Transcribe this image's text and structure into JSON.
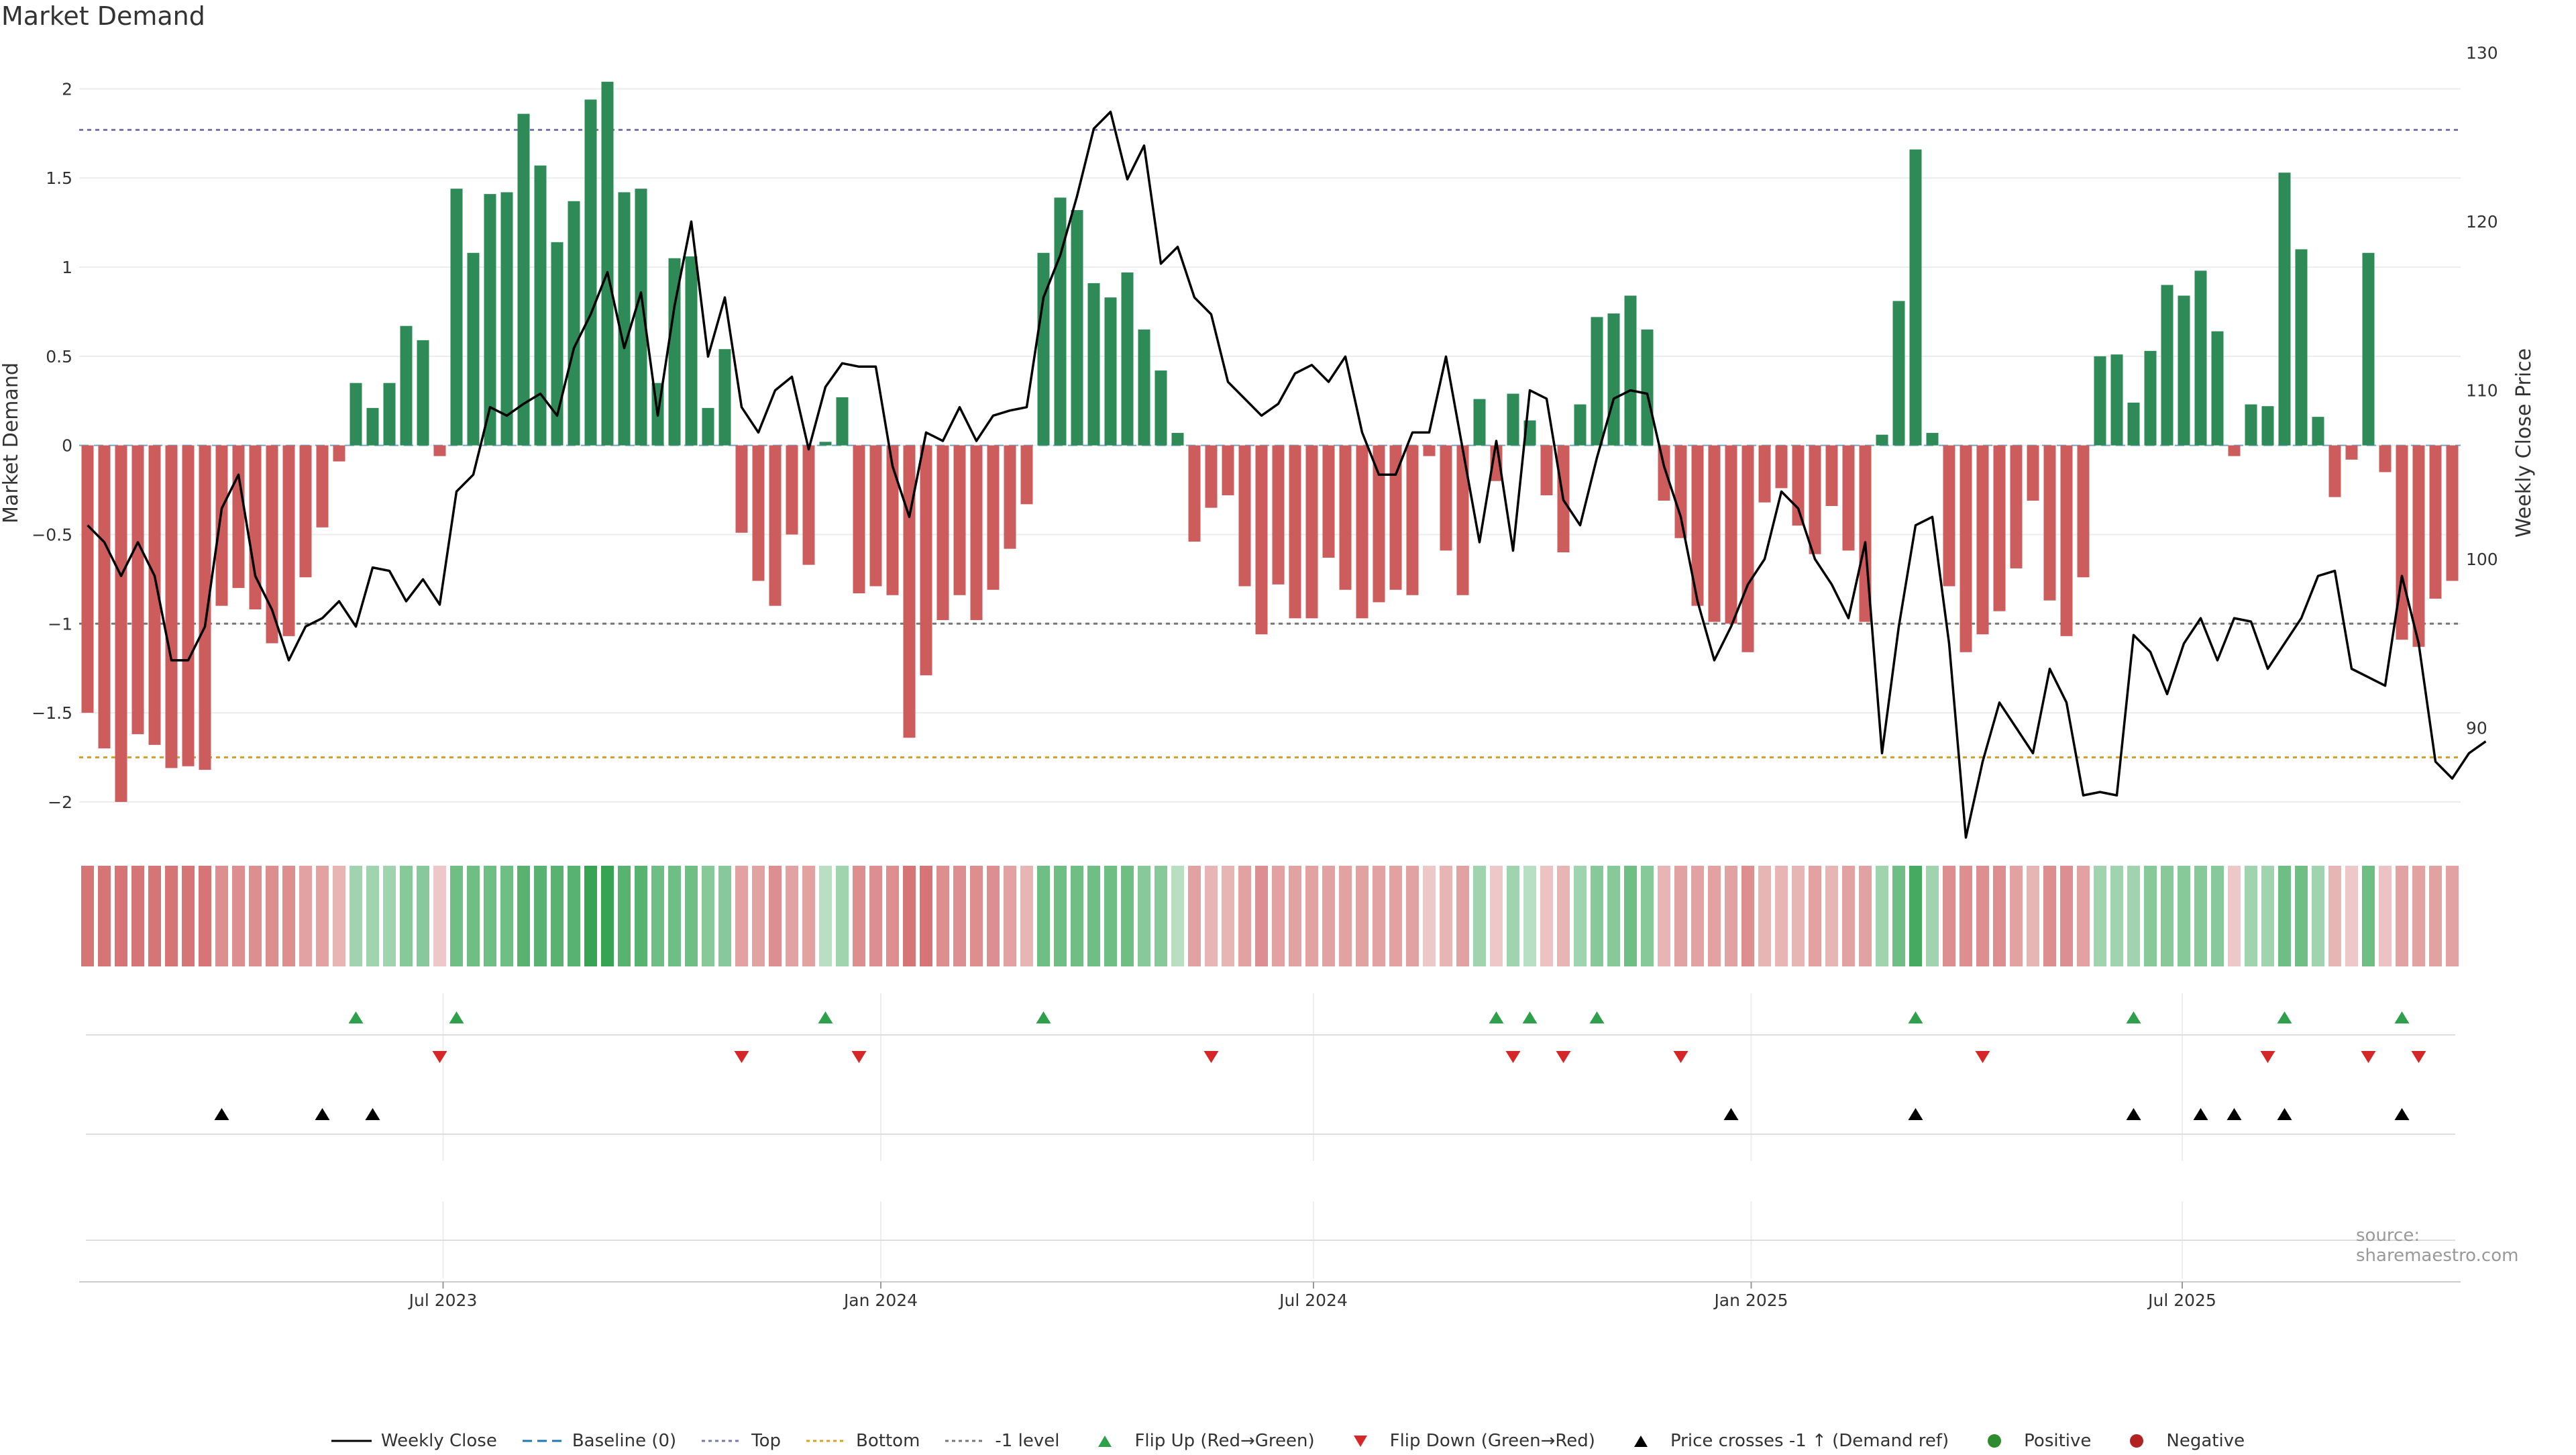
{
  "page": {
    "title": "Market Demand",
    "source": "source: sharemaestro.com"
  },
  "colors": {
    "positive_bar": "#2e8b57",
    "negative_bar": "#cd5c5c",
    "price_line": "#000000",
    "top_line": "#7777aa",
    "bottom_line": "#d4a030",
    "minus1_line": "#777777",
    "flip_up": "#2ea04c",
    "flip_down": "#d62728",
    "cross": "#000000"
  },
  "legend": [
    {
      "label": "Weekly Close",
      "symbol": "line",
      "color": "#000000"
    },
    {
      "label": "Baseline (0)",
      "symbol": "dash",
      "color": "#1f77b4"
    },
    {
      "label": "Top",
      "symbol": "dots",
      "color": "#7777aa"
    },
    {
      "label": "Bottom",
      "symbol": "dots",
      "color": "#d4a030"
    },
    {
      "label": "-1 level",
      "symbol": "dots",
      "color": "#777777"
    },
    {
      "label": "Flip Up (Red→Green)",
      "symbol": "tri-up",
      "color": "#2ea04c"
    },
    {
      "label": "Flip Down (Green→Red)",
      "symbol": "tri-down",
      "color": "#d62728"
    },
    {
      "label": "Price crosses -1 ↑ (Demand ref)",
      "symbol": "tri-up",
      "color": "#000000"
    },
    {
      "label": "Positive",
      "symbol": "dot",
      "color": "#2e8b2e"
    },
    {
      "label": "Negative",
      "symbol": "dot",
      "color": "#b22222"
    }
  ],
  "chart_data": {
    "type": "bar",
    "title": "Market Demand",
    "ylabel": "Market Demand",
    "y2label": "Weekly Close Price",
    "ylim": [
      -2.2,
      2.25
    ],
    "y2lim": [
      83.5,
      130.5
    ],
    "yticks": [
      {
        "v": 2,
        "label": "2"
      },
      {
        "v": 1.5,
        "label": "1.5"
      },
      {
        "v": 1,
        "label": "1"
      },
      {
        "v": 0.5,
        "label": "0.5"
      },
      {
        "v": 0,
        "label": "0"
      },
      {
        "v": -0.5,
        "label": "−0.5"
      },
      {
        "v": -1,
        "label": "−1"
      },
      {
        "v": -1.5,
        "label": "−1.5"
      },
      {
        "v": -2,
        "label": "−2"
      }
    ],
    "y2ticks": [
      {
        "v": 130,
        "label": "130"
      },
      {
        "v": 120,
        "label": "120"
      },
      {
        "v": 110,
        "label": "110"
      },
      {
        "v": 100,
        "label": "100"
      },
      {
        "v": 90,
        "label": "90"
      }
    ],
    "xtick_labels": [
      "Jul 2023",
      "Jan 2024",
      "Jul 2024",
      "Jan 2025",
      "Jul 2025"
    ],
    "xtick_index": [
      21.2,
      47.3,
      73.1,
      99.2,
      124.9
    ],
    "reference_lines": {
      "top": 1.77,
      "bottom": -1.75,
      "minus_one": -1
    },
    "demand": [
      -1.5,
      -1.7,
      -2.0,
      -1.62,
      -1.68,
      -1.81,
      -1.8,
      -1.82,
      -0.9,
      -0.8,
      -0.92,
      -1.11,
      -1.07,
      -0.74,
      -0.46,
      -0.09,
      0.35,
      0.21,
      0.35,
      0.67,
      0.59,
      -0.06,
      1.44,
      1.08,
      1.41,
      1.42,
      1.86,
      1.57,
      1.14,
      1.37,
      1.94,
      2.04,
      1.42,
      1.44,
      0.35,
      1.05,
      1.06,
      0.21,
      0.54,
      -0.49,
      -0.76,
      -0.9,
      -0.5,
      -0.67,
      0.02,
      0.27,
      -0.83,
      -0.79,
      -0.84,
      -1.64,
      -1.29,
      -0.98,
      -0.84,
      -0.98,
      -0.81,
      -0.58,
      -0.33,
      1.08,
      1.39,
      1.32,
      0.91,
      0.83,
      0.97,
      0.65,
      0.42,
      0.07,
      -0.54,
      -0.35,
      -0.28,
      -0.79,
      -1.06,
      -0.78,
      -0.97,
      -0.97,
      -0.63,
      -0.81,
      -0.97,
      -0.88,
      -0.81,
      -0.84,
      -0.06,
      -0.59,
      -0.84,
      0.26,
      -0.2,
      0.29,
      0.14,
      -0.28,
      -0.6,
      0.23,
      0.72,
      0.74,
      0.84,
      0.65,
      -0.31,
      -0.52,
      -0.9,
      -0.99,
      -1.0,
      -1.16,
      -0.32,
      -0.24,
      -0.45,
      -0.61,
      -0.34,
      -0.59,
      -0.99,
      0.06,
      0.81,
      1.66,
      0.07,
      -0.79,
      -1.16,
      -1.06,
      -0.93,
      -0.69,
      -0.31,
      -0.87,
      -1.07,
      -0.74,
      0.5,
      0.51,
      0.24,
      0.53,
      0.9,
      0.84,
      0.98,
      0.64,
      -0.06,
      0.23,
      0.22,
      1.53,
      1.1,
      0.16,
      -0.29,
      -0.08,
      1.08,
      -0.15,
      -1.09,
      -1.13,
      -0.86,
      -0.76
    ],
    "weekly_close": [
      102,
      101,
      99,
      101,
      99,
      94,
      94,
      96,
      103,
      105,
      99,
      97,
      94,
      96,
      96.5,
      97.5,
      96,
      99.5,
      99.3,
      97.5,
      98.8,
      97.3,
      104,
      105,
      109,
      108.5,
      109.2,
      109.8,
      108.5,
      112.5,
      114.5,
      117,
      112.5,
      115.8,
      108.5,
      115,
      120,
      112,
      115.5,
      109,
      107.5,
      110,
      110.8,
      106.5,
      110.2,
      111.6,
      111.4,
      111.4,
      105.5,
      102.5,
      107.5,
      107,
      109,
      107,
      108.5,
      108.8,
      109,
      115.5,
      118,
      121.5,
      125.5,
      126.5,
      122.5,
      124.5,
      117.5,
      118.5,
      115.5,
      114.5,
      110.5,
      109.5,
      108.5,
      109.2,
      111,
      111.5,
      110.5,
      112,
      107.5,
      105,
      105,
      107.5,
      107.5,
      112,
      106.5,
      101,
      107,
      100.5,
      110,
      109.5,
      103.5,
      102,
      106,
      109.5,
      110,
      109.8,
      105.5,
      102.5,
      97.5,
      94,
      96,
      98.5,
      100,
      104,
      103,
      100,
      98.5,
      96.5,
      101,
      88.5,
      96,
      102,
      102.5,
      95,
      83.5,
      88,
      91.5,
      90,
      88.5,
      93.5,
      91.5,
      86,
      86.2,
      86,
      95.5,
      94.5,
      92,
      95,
      96.5,
      94,
      96.5,
      96.3,
      93.5,
      95,
      96.5,
      99,
      99.3,
      93.5,
      93,
      92.5,
      99,
      95,
      88,
      87,
      88.5,
      89.2
    ],
    "strip_intensity": [
      -0.8,
      -0.8,
      -0.8,
      -0.8,
      -0.8,
      -0.8,
      -0.8,
      -0.8,
      -0.6,
      -0.6,
      -0.6,
      -0.6,
      -0.6,
      -0.45,
      -0.45,
      -0.3,
      0.3,
      0.3,
      0.3,
      0.45,
      0.45,
      -0.15,
      0.6,
      0.6,
      0.6,
      0.6,
      0.75,
      0.75,
      0.75,
      0.75,
      0.95,
      0.95,
      0.75,
      0.75,
      0.6,
      0.6,
      0.6,
      0.45,
      0.45,
      -0.45,
      -0.45,
      -0.6,
      -0.45,
      -0.45,
      0.15,
      0.3,
      -0.6,
      -0.6,
      -0.6,
      -0.8,
      -0.8,
      -0.6,
      -0.6,
      -0.6,
      -0.6,
      -0.45,
      -0.3,
      0.6,
      0.6,
      0.6,
      0.6,
      0.6,
      0.6,
      0.45,
      0.45,
      0.15,
      -0.45,
      -0.3,
      -0.3,
      -0.45,
      -0.6,
      -0.45,
      -0.45,
      -0.45,
      -0.45,
      -0.45,
      -0.45,
      -0.45,
      -0.45,
      -0.45,
      -0.15,
      -0.3,
      -0.45,
      0.3,
      -0.15,
      0.3,
      0.15,
      -0.2,
      -0.3,
      0.3,
      0.45,
      0.45,
      0.6,
      0.45,
      -0.3,
      -0.45,
      -0.45,
      -0.45,
      -0.45,
      -0.6,
      -0.3,
      -0.3,
      -0.3,
      -0.45,
      -0.3,
      -0.45,
      -0.45,
      0.3,
      0.6,
      0.85,
      0.3,
      -0.6,
      -0.6,
      -0.6,
      -0.6,
      -0.45,
      -0.3,
      -0.6,
      -0.6,
      -0.45,
      0.3,
      0.3,
      0.3,
      0.45,
      0.45,
      0.45,
      0.45,
      0.45,
      -0.15,
      0.3,
      0.3,
      0.6,
      0.6,
      0.3,
      -0.3,
      -0.15,
      0.6,
      -0.2,
      -0.45,
      -0.45,
      -0.45,
      -0.45
    ],
    "flip_up_index": [
      16,
      22,
      44,
      57,
      84,
      86,
      90,
      109,
      122,
      131,
      138
    ],
    "flip_down_index": [
      21,
      39,
      46,
      67,
      85,
      88,
      95,
      113,
      130,
      136,
      139
    ],
    "price_cross_index": [
      8,
      14,
      17,
      98,
      109,
      122,
      126,
      128,
      131,
      138
    ]
  }
}
